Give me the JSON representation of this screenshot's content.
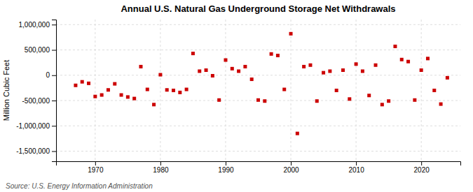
{
  "chart_data": {
    "type": "scatter",
    "title": "Annual U.S. Natural Gas Underground Storage Net Withdrawals",
    "ylabel": "Million Cubic Feet",
    "annotations": [
      "Source: U.S. Energy Information Administration"
    ],
    "color": "#cc0000",
    "marker": "square",
    "grid": true,
    "xlim": [
      1964,
      2026
    ],
    "ylim": [
      -1700000,
      1100000
    ],
    "xticks": [
      1970,
      1980,
      1990,
      2000,
      2010,
      2020
    ],
    "yticks": [
      {
        "value": -1500000,
        "label": "-1,500,000"
      },
      {
        "value": -1000000,
        "label": "-1,000,000"
      },
      {
        "value": -500000,
        "label": "-500,000"
      },
      0,
      {
        "value": 500000,
        "label": "500,000"
      },
      {
        "value": 1000000,
        "label": "1,000,000"
      }
    ],
    "x": [
      1967,
      1968,
      1969,
      1970,
      1971,
      1972,
      1973,
      1974,
      1975,
      1976,
      1977,
      1978,
      1979,
      1980,
      1981,
      1982,
      1983,
      1984,
      1985,
      1986,
      1987,
      1988,
      1989,
      1990,
      1991,
      1992,
      1993,
      1994,
      1995,
      1996,
      1997,
      1998,
      1999,
      2000,
      2001,
      2002,
      2003,
      2004,
      2005,
      2006,
      2007,
      2008,
      2009,
      2010,
      2011,
      2012,
      2013,
      2014,
      2015,
      2016,
      2017,
      2018,
      2019,
      2020,
      2021,
      2022,
      2023,
      2024
    ],
    "values": [
      -200000,
      -130000,
      -160000,
      -420000,
      -390000,
      -290000,
      -170000,
      -390000,
      -430000,
      -460000,
      170000,
      -280000,
      -580000,
      10000,
      -290000,
      -300000,
      -340000,
      -280000,
      430000,
      80000,
      100000,
      -10000,
      -490000,
      300000,
      130000,
      80000,
      170000,
      -80000,
      -490000,
      -510000,
      420000,
      390000,
      -280000,
      820000,
      -1150000,
      170000,
      200000,
      -510000,
      50000,
      80000,
      -300000,
      100000,
      -470000,
      220000,
      80000,
      -400000,
      200000,
      -580000,
      -510000,
      570000,
      310000,
      270000,
      -490000,
      100000,
      330000,
      -300000,
      -570000,
      -50000
    ]
  }
}
